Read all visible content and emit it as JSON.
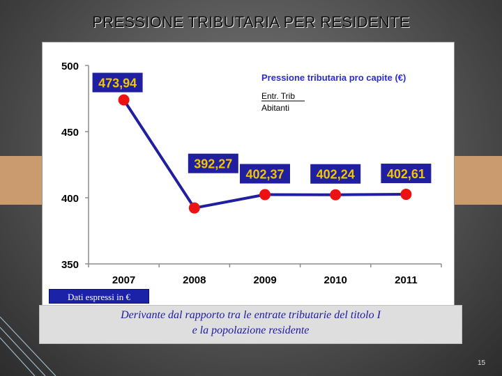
{
  "slide": {
    "title": "PRESSIONE TRIBUTARIA PER RESIDENTE",
    "page_number": "15"
  },
  "units_note": "Dati espressi in €",
  "description": {
    "line1": "Derivante dal rapporto tra le entrate tributarie del titolo I",
    "line2": "e la popolazione residente"
  },
  "legend": {
    "title": "Pressione tributaria pro capite  (€)",
    "numerator": "Entr. Trib",
    "denominator": "Abitanti"
  },
  "colors": {
    "line": "#1f1f9f",
    "marker": "#ee1111",
    "label_bg": "#1f1f9f",
    "label_text": "#f2c500",
    "legend_title": "#2a2ad8"
  },
  "chart_data": {
    "type": "line",
    "categories": [
      "2007",
      "2008",
      "2009",
      "2010",
      "2011"
    ],
    "values": [
      473.94,
      392.27,
      402.37,
      402.24,
      402.61
    ],
    "data_labels": [
      "473,94",
      "392,27",
      "402,37",
      "402,24",
      "402,61"
    ],
    "yticks": [
      "350",
      "400",
      "450",
      "500"
    ],
    "ylim": [
      350,
      500
    ],
    "grid": false,
    "legend_position": "top-right"
  }
}
